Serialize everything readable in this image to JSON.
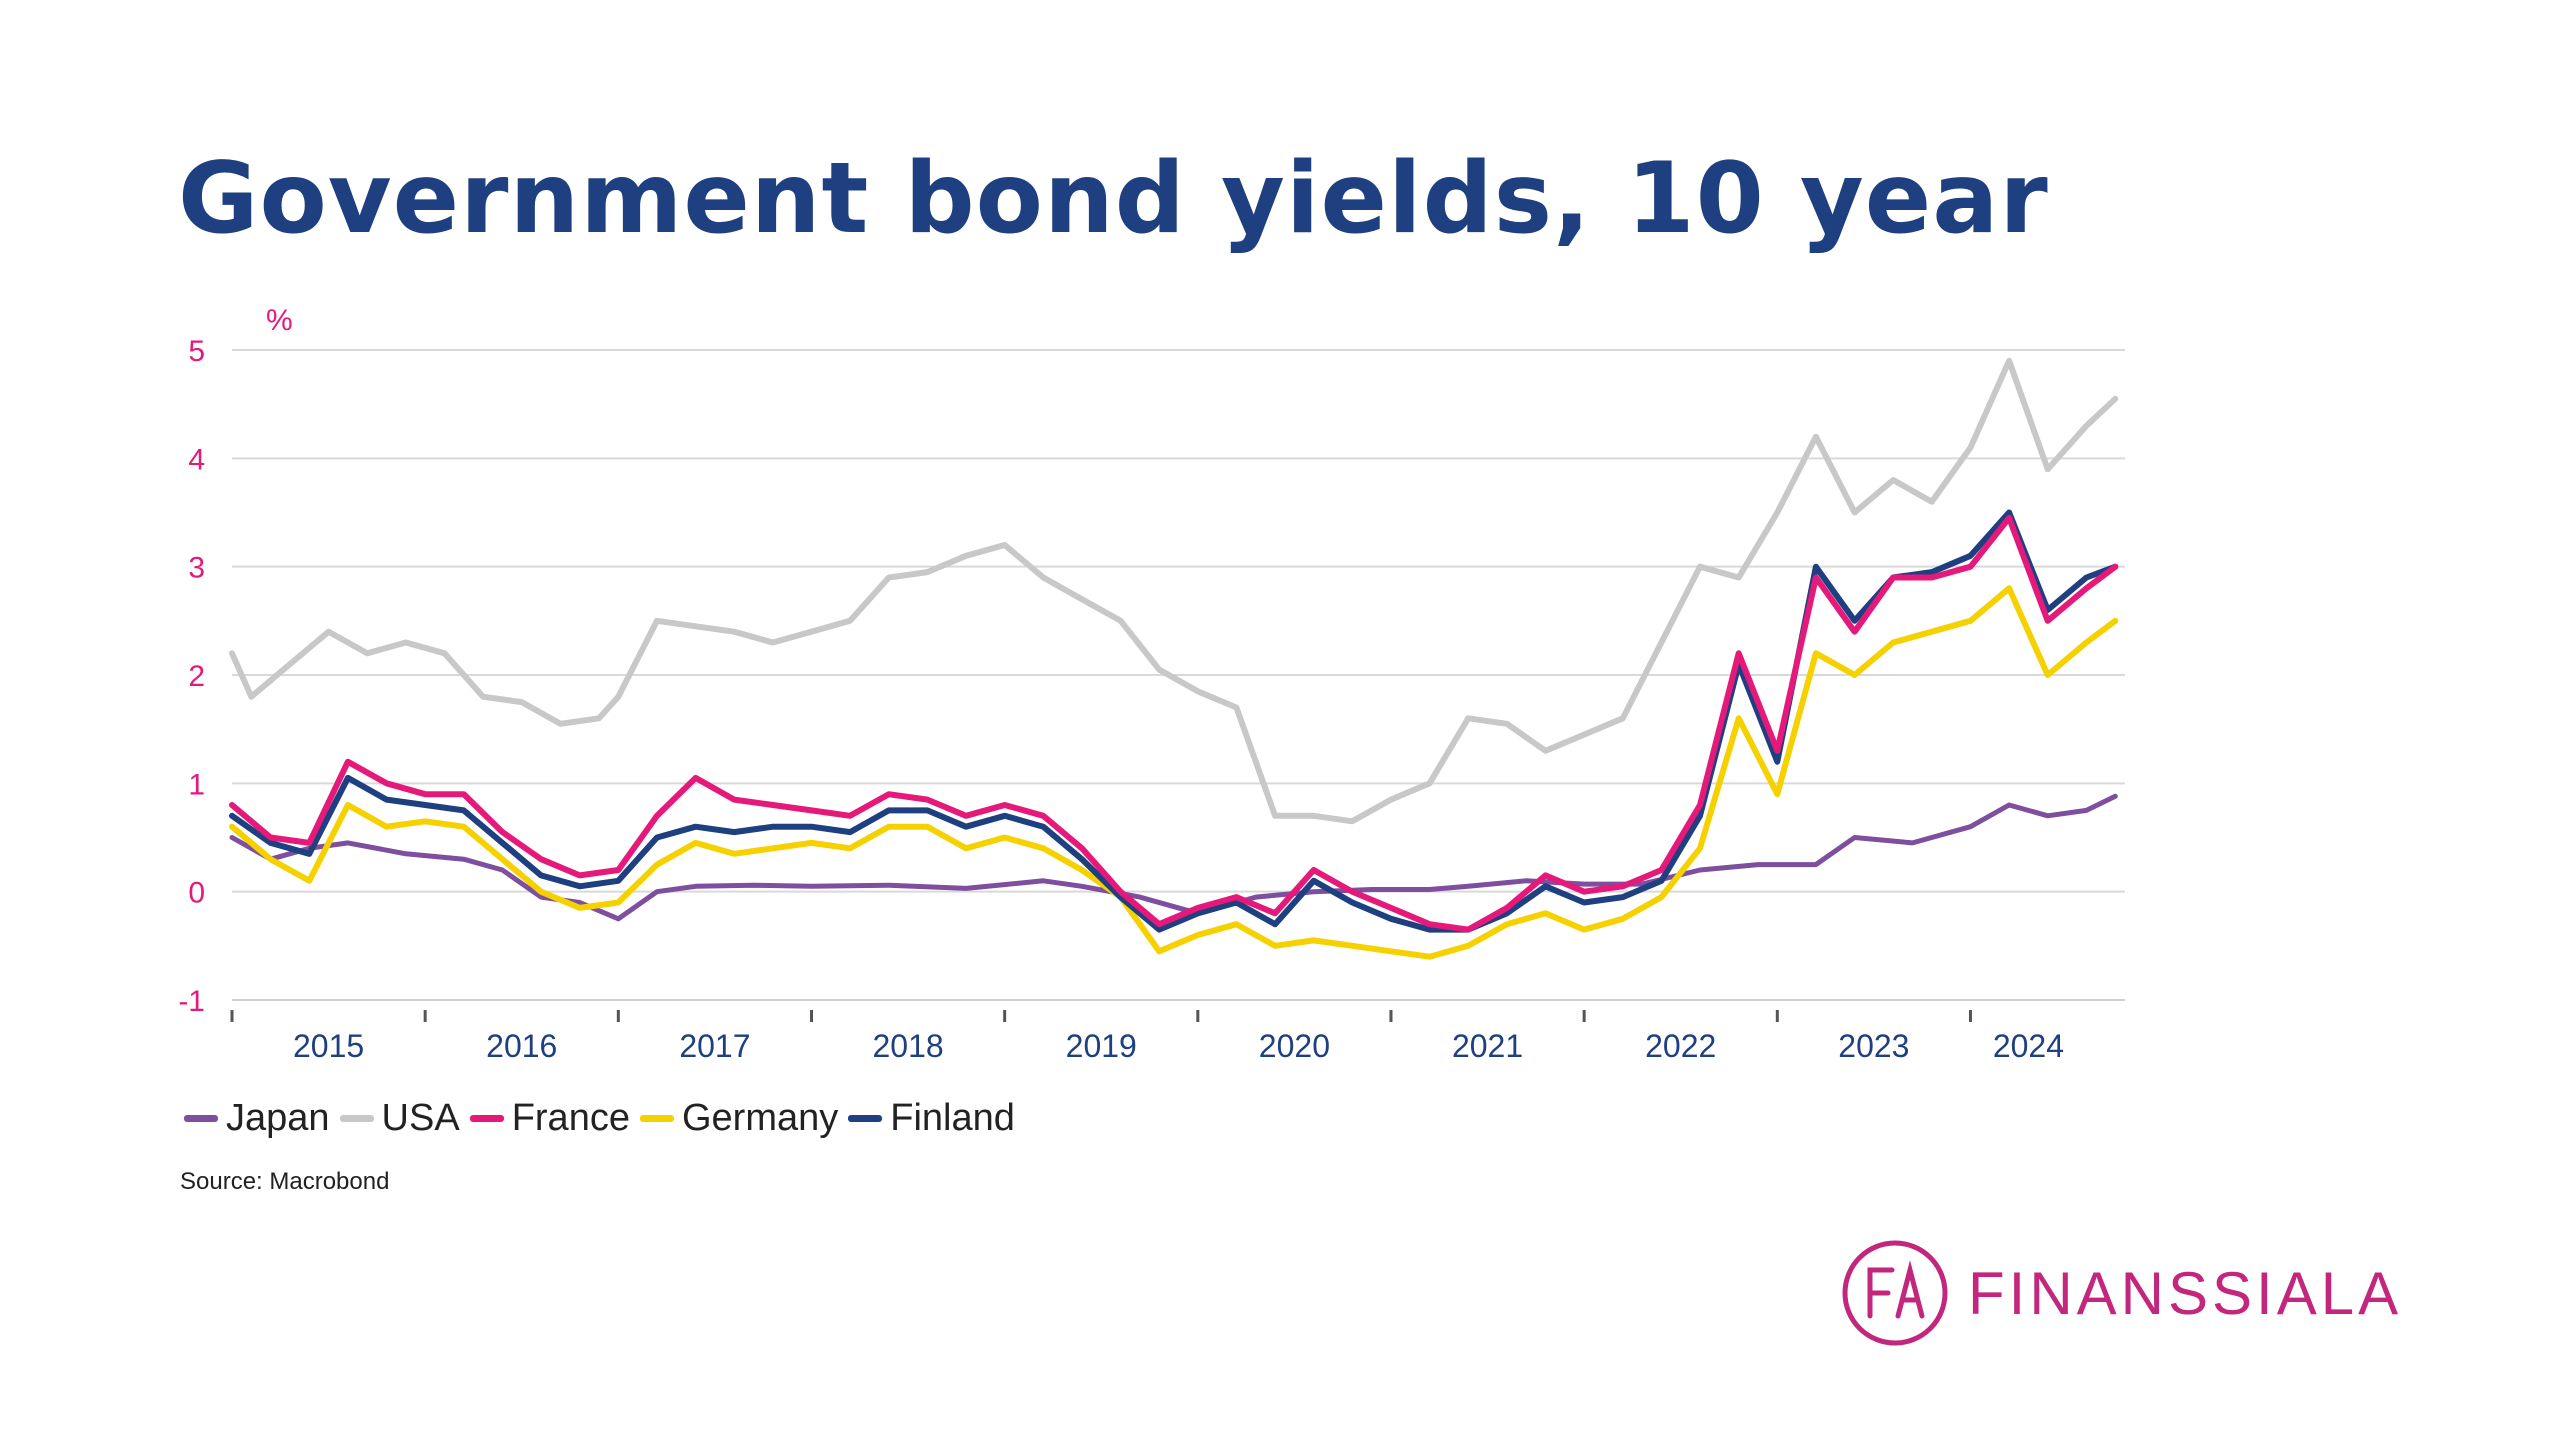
{
  "title": "Government bond yields, 10 year",
  "source": "Source: Macrobond",
  "logo": {
    "text": "FINANSSIALA",
    "monogram": "FA"
  },
  "colors": {
    "title": "#1e3f80",
    "axis_y_labels": "#e5197a",
    "axis_x_labels": "#1e3f80",
    "brand": "#c2267d"
  },
  "chart_data": {
    "type": "line",
    "title": "Government bond yields, 10 year",
    "ylabel": "%",
    "xlabel": "",
    "ylim": [
      -1,
      5
    ],
    "yticks": [
      -1,
      0,
      1,
      2,
      3,
      4,
      5
    ],
    "xlim": [
      2014.6,
      2024.4
    ],
    "xticks": [
      {
        "label": "2015",
        "value": 2015.1
      },
      {
        "label": "2016",
        "value": 2016.1
      },
      {
        "label": "2017",
        "value": 2017.1
      },
      {
        "label": "2018",
        "value": 2018.1
      },
      {
        "label": "2019",
        "value": 2019.1
      },
      {
        "label": "2020",
        "value": 2020.1
      },
      {
        "label": "2021",
        "value": 2021.1
      },
      {
        "label": "2022",
        "value": 2022.1
      },
      {
        "label": "2023",
        "value": 2023.1
      },
      {
        "label": "2024",
        "value": 2023.9
      }
    ],
    "grid": true,
    "legend_position": "bottom-left",
    "series": [
      {
        "name": "Japan",
        "color": "#7d4f9e",
        "x": [
          2014.6,
          2014.8,
          2015.0,
          2015.2,
          2015.5,
          2015.8,
          2016.0,
          2016.2,
          2016.4,
          2016.6,
          2016.8,
          2017.0,
          2017.3,
          2017.6,
          2018.0,
          2018.4,
          2018.8,
          2019.0,
          2019.3,
          2019.6,
          2019.9,
          2020.2,
          2020.5,
          2020.8,
          2021.0,
          2021.3,
          2021.6,
          2021.9,
          2022.2,
          2022.5,
          2022.8,
          2023.0,
          2023.3,
          2023.6,
          2023.8,
          2024.0,
          2024.2,
          2024.35
        ],
        "values": [
          0.5,
          0.3,
          0.4,
          0.45,
          0.35,
          0.3,
          0.2,
          -0.05,
          -0.1,
          -0.25,
          0.0,
          0.05,
          0.06,
          0.05,
          0.06,
          0.03,
          0.1,
          0.05,
          -0.05,
          -0.2,
          -0.05,
          0.0,
          0.02,
          0.02,
          0.05,
          0.1,
          0.07,
          0.07,
          0.2,
          0.25,
          0.25,
          0.5,
          0.45,
          0.6,
          0.8,
          0.7,
          0.75,
          0.88
        ]
      },
      {
        "name": "USA",
        "color": "#c8c8c8",
        "x": [
          2014.6,
          2014.7,
          2014.9,
          2015.1,
          2015.3,
          2015.5,
          2015.7,
          2015.9,
          2016.1,
          2016.3,
          2016.5,
          2016.6,
          2016.8,
          2017.0,
          2017.2,
          2017.4,
          2017.6,
          2017.8,
          2018.0,
          2018.2,
          2018.4,
          2018.6,
          2018.8,
          2019.0,
          2019.2,
          2019.4,
          2019.6,
          2019.8,
          2020.0,
          2020.2,
          2020.4,
          2020.6,
          2020.8,
          2021.0,
          2021.2,
          2021.4,
          2021.6,
          2021.8,
          2022.0,
          2022.2,
          2022.4,
          2022.6,
          2022.8,
          2023.0,
          2023.2,
          2023.4,
          2023.6,
          2023.8,
          2024.0,
          2024.2,
          2024.35
        ],
        "values": [
          2.2,
          1.8,
          2.1,
          2.4,
          2.2,
          2.3,
          2.2,
          1.8,
          1.75,
          1.55,
          1.6,
          1.8,
          2.5,
          2.45,
          2.4,
          2.3,
          2.4,
          2.5,
          2.9,
          2.95,
          3.1,
          3.2,
          2.9,
          2.7,
          2.5,
          2.05,
          1.85,
          1.7,
          0.7,
          0.7,
          0.65,
          0.85,
          1.0,
          1.6,
          1.55,
          1.3,
          1.45,
          1.6,
          2.3,
          3.0,
          2.9,
          3.5,
          4.2,
          3.5,
          3.8,
          3.6,
          4.1,
          4.9,
          3.9,
          4.3,
          4.55
        ]
      },
      {
        "name": "France",
        "color": "#e5197a",
        "x": [
          2014.6,
          2014.8,
          2015.0,
          2015.2,
          2015.4,
          2015.6,
          2015.8,
          2016.0,
          2016.2,
          2016.4,
          2016.6,
          2016.8,
          2017.0,
          2017.2,
          2017.4,
          2017.6,
          2017.8,
          2018.0,
          2018.2,
          2018.4,
          2018.6,
          2018.8,
          2019.0,
          2019.2,
          2019.4,
          2019.6,
          2019.8,
          2020.0,
          2020.2,
          2020.4,
          2020.6,
          2020.8,
          2021.0,
          2021.2,
          2021.4,
          2021.6,
          2021.8,
          2022.0,
          2022.2,
          2022.4,
          2022.6,
          2022.8,
          2023.0,
          2023.2,
          2023.4,
          2023.6,
          2023.8,
          2024.0,
          2024.2,
          2024.35
        ],
        "values": [
          0.8,
          0.5,
          0.45,
          1.2,
          1.0,
          0.9,
          0.9,
          0.55,
          0.3,
          0.15,
          0.2,
          0.7,
          1.05,
          0.85,
          0.8,
          0.75,
          0.7,
          0.9,
          0.85,
          0.7,
          0.8,
          0.7,
          0.4,
          0.0,
          -0.3,
          -0.15,
          -0.05,
          -0.2,
          0.2,
          0.0,
          -0.15,
          -0.3,
          -0.35,
          -0.15,
          0.15,
          0.0,
          0.05,
          0.2,
          0.8,
          2.2,
          1.3,
          2.9,
          2.4,
          2.9,
          2.9,
          3.0,
          3.45,
          2.5,
          2.8,
          3.0
        ]
      },
      {
        "name": "Germany",
        "color": "#f6d100",
        "x": [
          2014.6,
          2014.8,
          2015.0,
          2015.2,
          2015.4,
          2015.6,
          2015.8,
          2016.0,
          2016.2,
          2016.4,
          2016.6,
          2016.8,
          2017.0,
          2017.2,
          2017.4,
          2017.6,
          2017.8,
          2018.0,
          2018.2,
          2018.4,
          2018.6,
          2018.8,
          2019.0,
          2019.2,
          2019.4,
          2019.6,
          2019.8,
          2020.0,
          2020.2,
          2020.4,
          2020.6,
          2020.8,
          2021.0,
          2021.2,
          2021.4,
          2021.6,
          2021.8,
          2022.0,
          2022.2,
          2022.4,
          2022.6,
          2022.8,
          2023.0,
          2023.2,
          2023.4,
          2023.6,
          2023.8,
          2024.0,
          2024.2,
          2024.35
        ],
        "values": [
          0.6,
          0.3,
          0.1,
          0.8,
          0.6,
          0.65,
          0.6,
          0.3,
          0.0,
          -0.15,
          -0.1,
          0.25,
          0.45,
          0.35,
          0.4,
          0.45,
          0.4,
          0.6,
          0.6,
          0.4,
          0.5,
          0.4,
          0.2,
          -0.05,
          -0.55,
          -0.4,
          -0.3,
          -0.5,
          -0.45,
          -0.5,
          -0.55,
          -0.6,
          -0.5,
          -0.3,
          -0.2,
          -0.35,
          -0.25,
          -0.05,
          0.4,
          1.6,
          0.9,
          2.2,
          2.0,
          2.3,
          2.4,
          2.5,
          2.8,
          2.0,
          2.3,
          2.5
        ]
      },
      {
        "name": "Finland",
        "color": "#1e3f80",
        "x": [
          2014.6,
          2014.8,
          2015.0,
          2015.2,
          2015.4,
          2015.6,
          2015.8,
          2016.0,
          2016.2,
          2016.4,
          2016.6,
          2016.8,
          2017.0,
          2017.2,
          2017.4,
          2017.6,
          2017.8,
          2018.0,
          2018.2,
          2018.4,
          2018.6,
          2018.8,
          2019.0,
          2019.2,
          2019.4,
          2019.6,
          2019.8,
          2020.0,
          2020.2,
          2020.4,
          2020.6,
          2020.8,
          2021.0,
          2021.2,
          2021.4,
          2021.6,
          2021.8,
          2022.0,
          2022.2,
          2022.4,
          2022.6,
          2022.8,
          2023.0,
          2023.2,
          2023.4,
          2023.6,
          2023.8,
          2024.0,
          2024.2,
          2024.35
        ],
        "values": [
          0.7,
          0.45,
          0.35,
          1.05,
          0.85,
          0.8,
          0.75,
          0.45,
          0.15,
          0.05,
          0.1,
          0.5,
          0.6,
          0.55,
          0.6,
          0.6,
          0.55,
          0.75,
          0.75,
          0.6,
          0.7,
          0.6,
          0.3,
          -0.05,
          -0.35,
          -0.2,
          -0.1,
          -0.3,
          0.1,
          -0.1,
          -0.25,
          -0.35,
          -0.35,
          -0.2,
          0.05,
          -0.1,
          -0.05,
          0.1,
          0.7,
          2.1,
          1.2,
          3.0,
          2.5,
          2.9,
          2.95,
          3.1,
          3.5,
          2.6,
          2.9,
          3.0
        ]
      }
    ]
  }
}
